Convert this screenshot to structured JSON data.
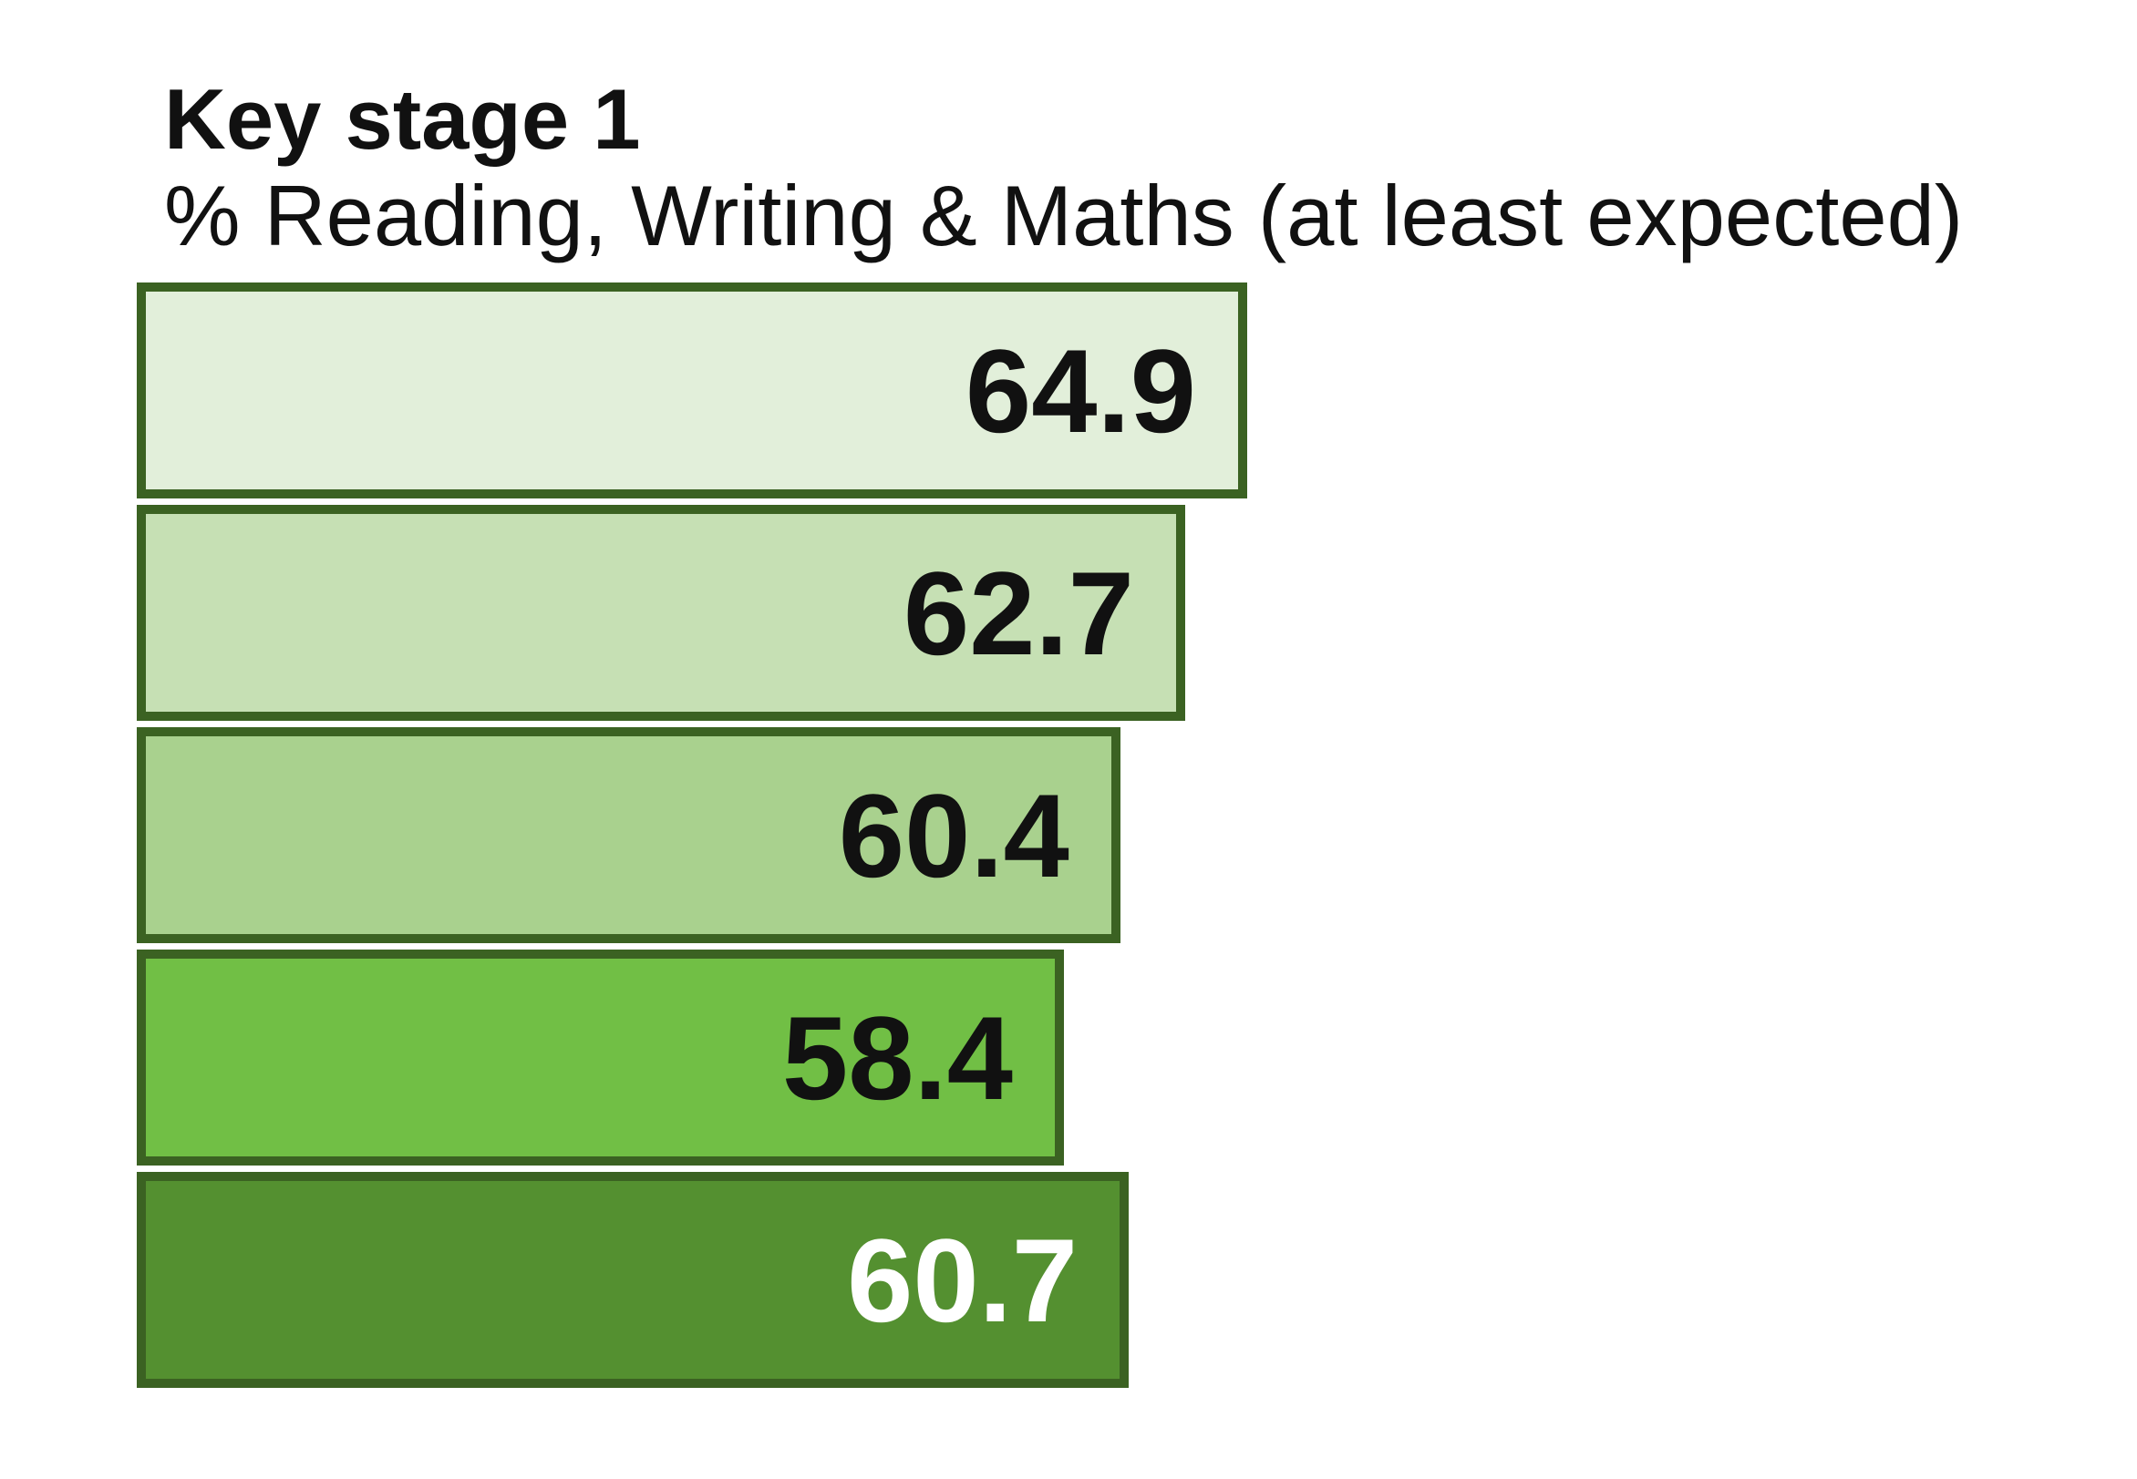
{
  "chart_data": {
    "type": "bar",
    "orientation": "horizontal",
    "title": "Key stage 1",
    "subtitle": "% Reading, Writing & Maths (at least expected)",
    "values": [
      64.9,
      62.7,
      60.4,
      58.4,
      60.7
    ],
    "value_labels": [
      "64.9",
      "62.7",
      "60.4",
      "58.4",
      "60.7"
    ],
    "xlim": [
      25.5,
      66
    ],
    "grid": false,
    "legend": false,
    "axis_labels_visible": false,
    "bar_colors": [
      "#E2EFDA",
      "#C6E0B4",
      "#A9D18E",
      "#71BF45",
      "#549030"
    ],
    "bar_border_color": "#3B6222",
    "label_colors": [
      "#111111",
      "#111111",
      "#111111",
      "#111111",
      "#FFFFFF"
    ],
    "background_color": "#FFFFFF",
    "text_color": "#111111"
  }
}
